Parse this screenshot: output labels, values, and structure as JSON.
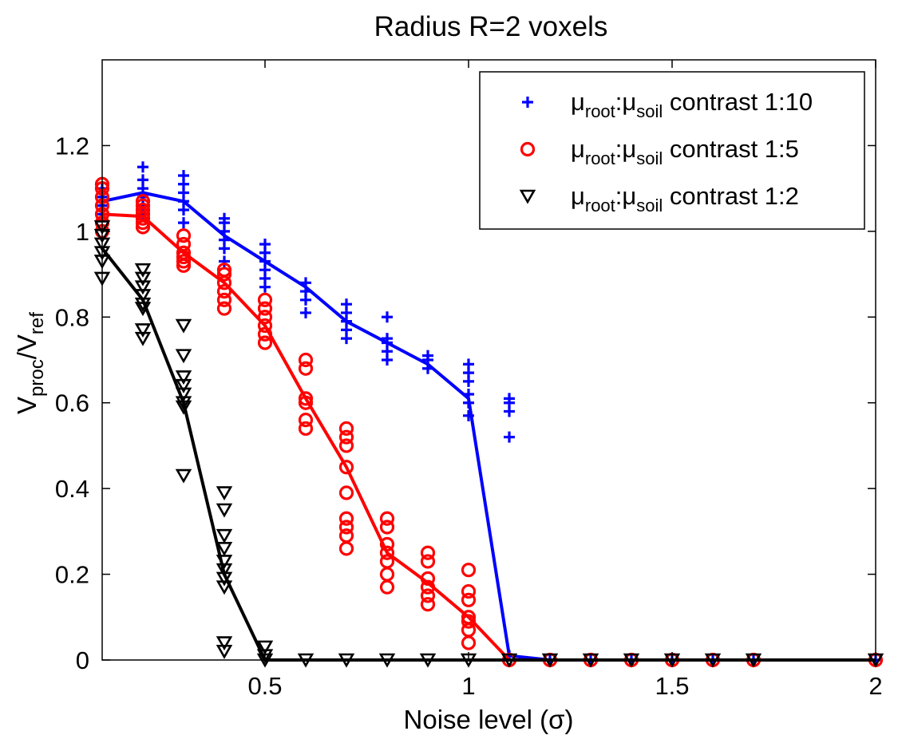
{
  "chart_data": {
    "type": "scatter",
    "title": "Radius R=2 voxels",
    "xlabel": "Noise level (σ)",
    "ylabel": {
      "base1": "V",
      "sub1": "proc",
      "sep": "/",
      "base2": "V",
      "sub2": "ref"
    },
    "xlim": [
      0.1,
      2.0
    ],
    "ylim": [
      0,
      1.4
    ],
    "xticks": [
      0.5,
      1.0,
      1.5,
      2.0
    ],
    "xtick_labels": [
      "0.5",
      "1",
      "1.5",
      "2"
    ],
    "yticks": [
      0,
      0.2,
      0.4,
      0.6,
      0.8,
      1.0,
      1.2
    ],
    "ytick_labels": [
      "0",
      "0.2",
      "0.4",
      "0.6",
      "0.8",
      "1",
      "1.2"
    ],
    "grid": false,
    "legend_position": "top-right",
    "series": [
      {
        "name": {
          "mu1": "μ",
          "sub1": "root",
          "colon": ":",
          "mu2": "μ",
          "sub2": "soil",
          "tail": " contrast 1:10"
        },
        "color": "#0000ff",
        "marker": "plus",
        "mean": [
          [
            0.1,
            1.07
          ],
          [
            0.2,
            1.09
          ],
          [
            0.3,
            1.07
          ],
          [
            0.4,
            0.99
          ],
          [
            0.5,
            0.93
          ],
          [
            0.6,
            0.87
          ],
          [
            0.7,
            0.79
          ],
          [
            0.8,
            0.74
          ],
          [
            0.9,
            0.69
          ],
          [
            1.0,
            0.61
          ],
          [
            1.1,
            0.01
          ],
          [
            1.2,
            0
          ],
          [
            1.3,
            0
          ],
          [
            1.4,
            0
          ],
          [
            1.5,
            0
          ],
          [
            1.6,
            0
          ],
          [
            1.7,
            0
          ],
          [
            2.0,
            0
          ]
        ],
        "points": [
          [
            0.1,
            1.04
          ],
          [
            0.1,
            1.06
          ],
          [
            0.1,
            1.08
          ],
          [
            0.1,
            1.1
          ],
          [
            0.2,
            1.04
          ],
          [
            0.2,
            1.06
          ],
          [
            0.2,
            1.08
          ],
          [
            0.2,
            1.1
          ],
          [
            0.2,
            1.12
          ],
          [
            0.2,
            1.15
          ],
          [
            0.3,
            1.02
          ],
          [
            0.3,
            1.05
          ],
          [
            0.3,
            1.07
          ],
          [
            0.3,
            1.09
          ],
          [
            0.3,
            1.11
          ],
          [
            0.3,
            1.13
          ],
          [
            0.4,
            0.93
          ],
          [
            0.4,
            0.96
          ],
          [
            0.4,
            0.98
          ],
          [
            0.4,
            1.0
          ],
          [
            0.4,
            1.02
          ],
          [
            0.4,
            1.03
          ],
          [
            0.5,
            0.87
          ],
          [
            0.5,
            0.89
          ],
          [
            0.5,
            0.91
          ],
          [
            0.5,
            0.93
          ],
          [
            0.5,
            0.95
          ],
          [
            0.5,
            0.97
          ],
          [
            0.6,
            0.81
          ],
          [
            0.6,
            0.84
          ],
          [
            0.6,
            0.86
          ],
          [
            0.6,
            0.88
          ],
          [
            0.7,
            0.75
          ],
          [
            0.7,
            0.77
          ],
          [
            0.7,
            0.79
          ],
          [
            0.7,
            0.81
          ],
          [
            0.7,
            0.83
          ],
          [
            0.8,
            0.7
          ],
          [
            0.8,
            0.72
          ],
          [
            0.8,
            0.74
          ],
          [
            0.8,
            0.75
          ],
          [
            0.8,
            0.8
          ],
          [
            0.9,
            0.68
          ],
          [
            0.9,
            0.7
          ],
          [
            0.9,
            0.71
          ],
          [
            1.0,
            0.57
          ],
          [
            1.0,
            0.6
          ],
          [
            1.0,
            0.62
          ],
          [
            1.0,
            0.65
          ],
          [
            1.0,
            0.67
          ],
          [
            1.0,
            0.69
          ],
          [
            1.1,
            0.52
          ],
          [
            1.1,
            0.58
          ],
          [
            1.1,
            0.6
          ],
          [
            1.1,
            0.61
          ],
          [
            1.1,
            0.01
          ],
          [
            1.2,
            0
          ],
          [
            1.3,
            0
          ],
          [
            1.4,
            0
          ],
          [
            1.5,
            0
          ],
          [
            1.6,
            0
          ],
          [
            1.7,
            0
          ],
          [
            2.0,
            0
          ]
        ]
      },
      {
        "name": {
          "mu1": "μ",
          "sub1": "root",
          "colon": ":",
          "mu2": "μ",
          "sub2": "soil",
          "tail": " contrast 1:5"
        },
        "color": "#ff0000",
        "marker": "circle",
        "mean": [
          [
            0.1,
            1.04
          ],
          [
            0.2,
            1.035
          ],
          [
            0.3,
            0.95
          ],
          [
            0.4,
            0.88
          ],
          [
            0.5,
            0.78
          ],
          [
            0.6,
            0.61
          ],
          [
            0.7,
            0.45
          ],
          [
            0.8,
            0.25
          ],
          [
            0.9,
            0.18
          ],
          [
            1.0,
            0.1
          ],
          [
            1.1,
            0
          ],
          [
            1.2,
            0
          ],
          [
            1.3,
            0
          ],
          [
            1.4,
            0
          ],
          [
            1.5,
            0
          ],
          [
            1.6,
            0
          ],
          [
            1.7,
            0
          ],
          [
            2.0,
            0
          ]
        ],
        "points": [
          [
            0.1,
            1.11
          ],
          [
            0.1,
            1.1
          ],
          [
            0.1,
            1.08
          ],
          [
            0.1,
            1.06
          ],
          [
            0.1,
            1.04
          ],
          [
            0.1,
            1.02
          ],
          [
            0.1,
            1.0
          ],
          [
            0.2,
            1.07
          ],
          [
            0.2,
            1.06
          ],
          [
            0.2,
            1.05
          ],
          [
            0.2,
            1.04
          ],
          [
            0.2,
            1.03
          ],
          [
            0.2,
            1.02
          ],
          [
            0.2,
            1.01
          ],
          [
            0.3,
            0.99
          ],
          [
            0.3,
            0.97
          ],
          [
            0.3,
            0.95
          ],
          [
            0.3,
            0.94
          ],
          [
            0.3,
            0.93
          ],
          [
            0.3,
            0.92
          ],
          [
            0.4,
            0.91
          ],
          [
            0.4,
            0.9
          ],
          [
            0.4,
            0.88
          ],
          [
            0.4,
            0.86
          ],
          [
            0.4,
            0.84
          ],
          [
            0.4,
            0.82
          ],
          [
            0.5,
            0.84
          ],
          [
            0.5,
            0.82
          ],
          [
            0.5,
            0.8
          ],
          [
            0.5,
            0.78
          ],
          [
            0.5,
            0.76
          ],
          [
            0.5,
            0.74
          ],
          [
            0.6,
            0.7
          ],
          [
            0.6,
            0.68
          ],
          [
            0.6,
            0.61
          ],
          [
            0.6,
            0.6
          ],
          [
            0.6,
            0.56
          ],
          [
            0.6,
            0.54
          ],
          [
            0.7,
            0.54
          ],
          [
            0.7,
            0.52
          ],
          [
            0.7,
            0.5
          ],
          [
            0.7,
            0.45
          ],
          [
            0.7,
            0.39
          ],
          [
            0.7,
            0.33
          ],
          [
            0.7,
            0.31
          ],
          [
            0.7,
            0.29
          ],
          [
            0.7,
            0.26
          ],
          [
            0.8,
            0.33
          ],
          [
            0.8,
            0.31
          ],
          [
            0.8,
            0.27
          ],
          [
            0.8,
            0.25
          ],
          [
            0.8,
            0.23
          ],
          [
            0.8,
            0.2
          ],
          [
            0.8,
            0.17
          ],
          [
            0.9,
            0.25
          ],
          [
            0.9,
            0.23
          ],
          [
            0.9,
            0.19
          ],
          [
            0.9,
            0.17
          ],
          [
            0.9,
            0.15
          ],
          [
            0.9,
            0.13
          ],
          [
            1.0,
            0.21
          ],
          [
            1.0,
            0.16
          ],
          [
            1.0,
            0.14
          ],
          [
            1.0,
            0.1
          ],
          [
            1.0,
            0.09
          ],
          [
            1.0,
            0.07
          ],
          [
            1.0,
            0.04
          ],
          [
            1.1,
            0
          ],
          [
            1.2,
            0
          ],
          [
            1.3,
            0
          ],
          [
            1.4,
            0
          ],
          [
            1.5,
            0
          ],
          [
            1.6,
            0
          ],
          [
            1.7,
            0
          ],
          [
            2.0,
            0
          ]
        ]
      },
      {
        "name": {
          "mu1": "μ",
          "sub1": "root",
          "colon": ":",
          "mu2": "μ",
          "sub2": "soil",
          "tail": " contrast 1:2"
        },
        "color": "#000000",
        "marker": "triangle-down",
        "mean": [
          [
            0.1,
            0.96
          ],
          [
            0.2,
            0.84
          ],
          [
            0.3,
            0.6
          ],
          [
            0.4,
            0.2
          ],
          [
            0.5,
            0
          ],
          [
            0.6,
            0
          ],
          [
            0.7,
            0
          ],
          [
            0.8,
            0
          ],
          [
            0.9,
            0
          ],
          [
            1.0,
            0
          ],
          [
            1.1,
            0
          ],
          [
            1.2,
            0
          ],
          [
            1.3,
            0
          ],
          [
            1.4,
            0
          ],
          [
            1.5,
            0
          ],
          [
            1.6,
            0
          ],
          [
            1.7,
            0
          ],
          [
            2.0,
            0
          ]
        ],
        "points": [
          [
            0.1,
            1.01
          ],
          [
            0.1,
            0.99
          ],
          [
            0.1,
            0.97
          ],
          [
            0.1,
            0.95
          ],
          [
            0.1,
            0.93
          ],
          [
            0.1,
            0.89
          ],
          [
            0.2,
            0.91
          ],
          [
            0.2,
            0.89
          ],
          [
            0.2,
            0.87
          ],
          [
            0.2,
            0.85
          ],
          [
            0.2,
            0.83
          ],
          [
            0.2,
            0.82
          ],
          [
            0.2,
            0.77
          ],
          [
            0.2,
            0.75
          ],
          [
            0.3,
            0.78
          ],
          [
            0.3,
            0.71
          ],
          [
            0.3,
            0.66
          ],
          [
            0.3,
            0.64
          ],
          [
            0.3,
            0.62
          ],
          [
            0.3,
            0.6
          ],
          [
            0.3,
            0.59
          ],
          [
            0.3,
            0.43
          ],
          [
            0.4,
            0.39
          ],
          [
            0.4,
            0.35
          ],
          [
            0.4,
            0.29
          ],
          [
            0.4,
            0.26
          ],
          [
            0.4,
            0.23
          ],
          [
            0.4,
            0.21
          ],
          [
            0.4,
            0.19
          ],
          [
            0.4,
            0.17
          ],
          [
            0.4,
            0.04
          ],
          [
            0.4,
            0.02
          ],
          [
            0.5,
            0.03
          ],
          [
            0.5,
            0.01
          ],
          [
            0.5,
            0
          ],
          [
            0.6,
            0
          ],
          [
            0.7,
            0
          ],
          [
            0.8,
            0
          ],
          [
            0.9,
            0
          ],
          [
            1.0,
            0
          ],
          [
            1.1,
            0
          ],
          [
            1.2,
            0
          ],
          [
            1.3,
            0
          ],
          [
            1.4,
            0
          ],
          [
            1.5,
            0
          ],
          [
            1.6,
            0
          ],
          [
            1.7,
            0
          ],
          [
            2.0,
            0
          ]
        ]
      }
    ]
  }
}
